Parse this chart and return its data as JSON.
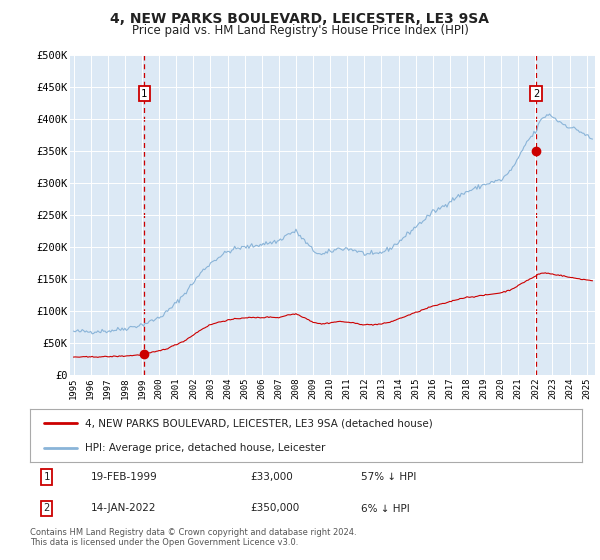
{
  "title": "4, NEW PARKS BOULEVARD, LEICESTER, LE3 9SA",
  "subtitle": "Price paid vs. HM Land Registry's House Price Index (HPI)",
  "plot_bg_color": "#dce9f5",
  "hpi_color": "#8ab4d8",
  "price_color": "#cc0000",
  "dashed_line_color": "#cc0000",
  "ylim": [
    0,
    500000
  ],
  "yticks": [
    0,
    50000,
    100000,
    150000,
    200000,
    250000,
    300000,
    350000,
    400000,
    450000,
    500000
  ],
  "ytick_labels": [
    "£0",
    "£50K",
    "£100K",
    "£150K",
    "£200K",
    "£250K",
    "£300K",
    "£350K",
    "£400K",
    "£450K",
    "£500K"
  ],
  "xlim_start": 1994.8,
  "xlim_end": 2025.5,
  "xtick_years": [
    1995,
    1996,
    1997,
    1998,
    1999,
    2000,
    2001,
    2002,
    2003,
    2004,
    2005,
    2006,
    2007,
    2008,
    2009,
    2010,
    2011,
    2012,
    2013,
    2014,
    2015,
    2016,
    2017,
    2018,
    2019,
    2020,
    2021,
    2022,
    2023,
    2024,
    2025
  ],
  "legend_label_red": "4, NEW PARKS BOULEVARD, LEICESTER, LE3 9SA (detached house)",
  "legend_label_blue": "HPI: Average price, detached house, Leicester",
  "sale1_date": 1999.13,
  "sale1_price": 33000,
  "sale1_label": "1",
  "sale1_text": "19-FEB-1999",
  "sale1_amount": "£33,000",
  "sale1_hpi": "57% ↓ HPI",
  "sale2_date": 2022.04,
  "sale2_price": 350000,
  "sale2_label": "2",
  "sale2_text": "14-JAN-2022",
  "sale2_amount": "£350,000",
  "sale2_hpi": "6% ↓ HPI",
  "footer": "Contains HM Land Registry data © Crown copyright and database right 2024.\nThis data is licensed under the Open Government Licence v3.0."
}
